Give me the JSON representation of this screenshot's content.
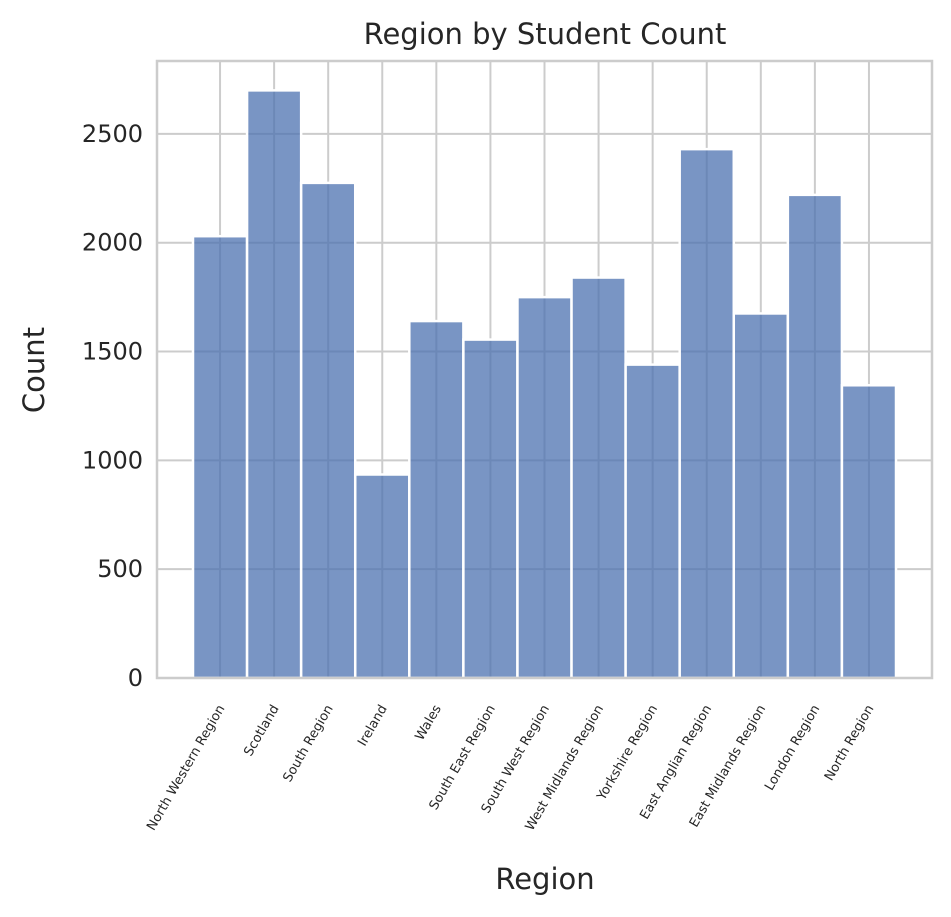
{
  "chart_data": {
    "type": "bar",
    "title": "Region by Student Count",
    "xlabel": "Region",
    "ylabel": "Count",
    "categories": [
      "North Western Region",
      "Scotland",
      "South Region",
      "Ireland",
      "Wales",
      "South East Region",
      "South West Region",
      "West Midlands Region",
      "Yorkshire Region",
      "East Anglian Region",
      "East Midlands Region",
      "London Region",
      "North Region"
    ],
    "values": [
      2030,
      2700,
      2275,
      935,
      1640,
      1555,
      1750,
      1840,
      1440,
      2430,
      1675,
      2220,
      1345
    ],
    "yticks": [
      0,
      500,
      1000,
      1500,
      2000,
      2500
    ],
    "ylim": [
      0,
      2835
    ],
    "grid": true,
    "color": "#4c72b0"
  }
}
